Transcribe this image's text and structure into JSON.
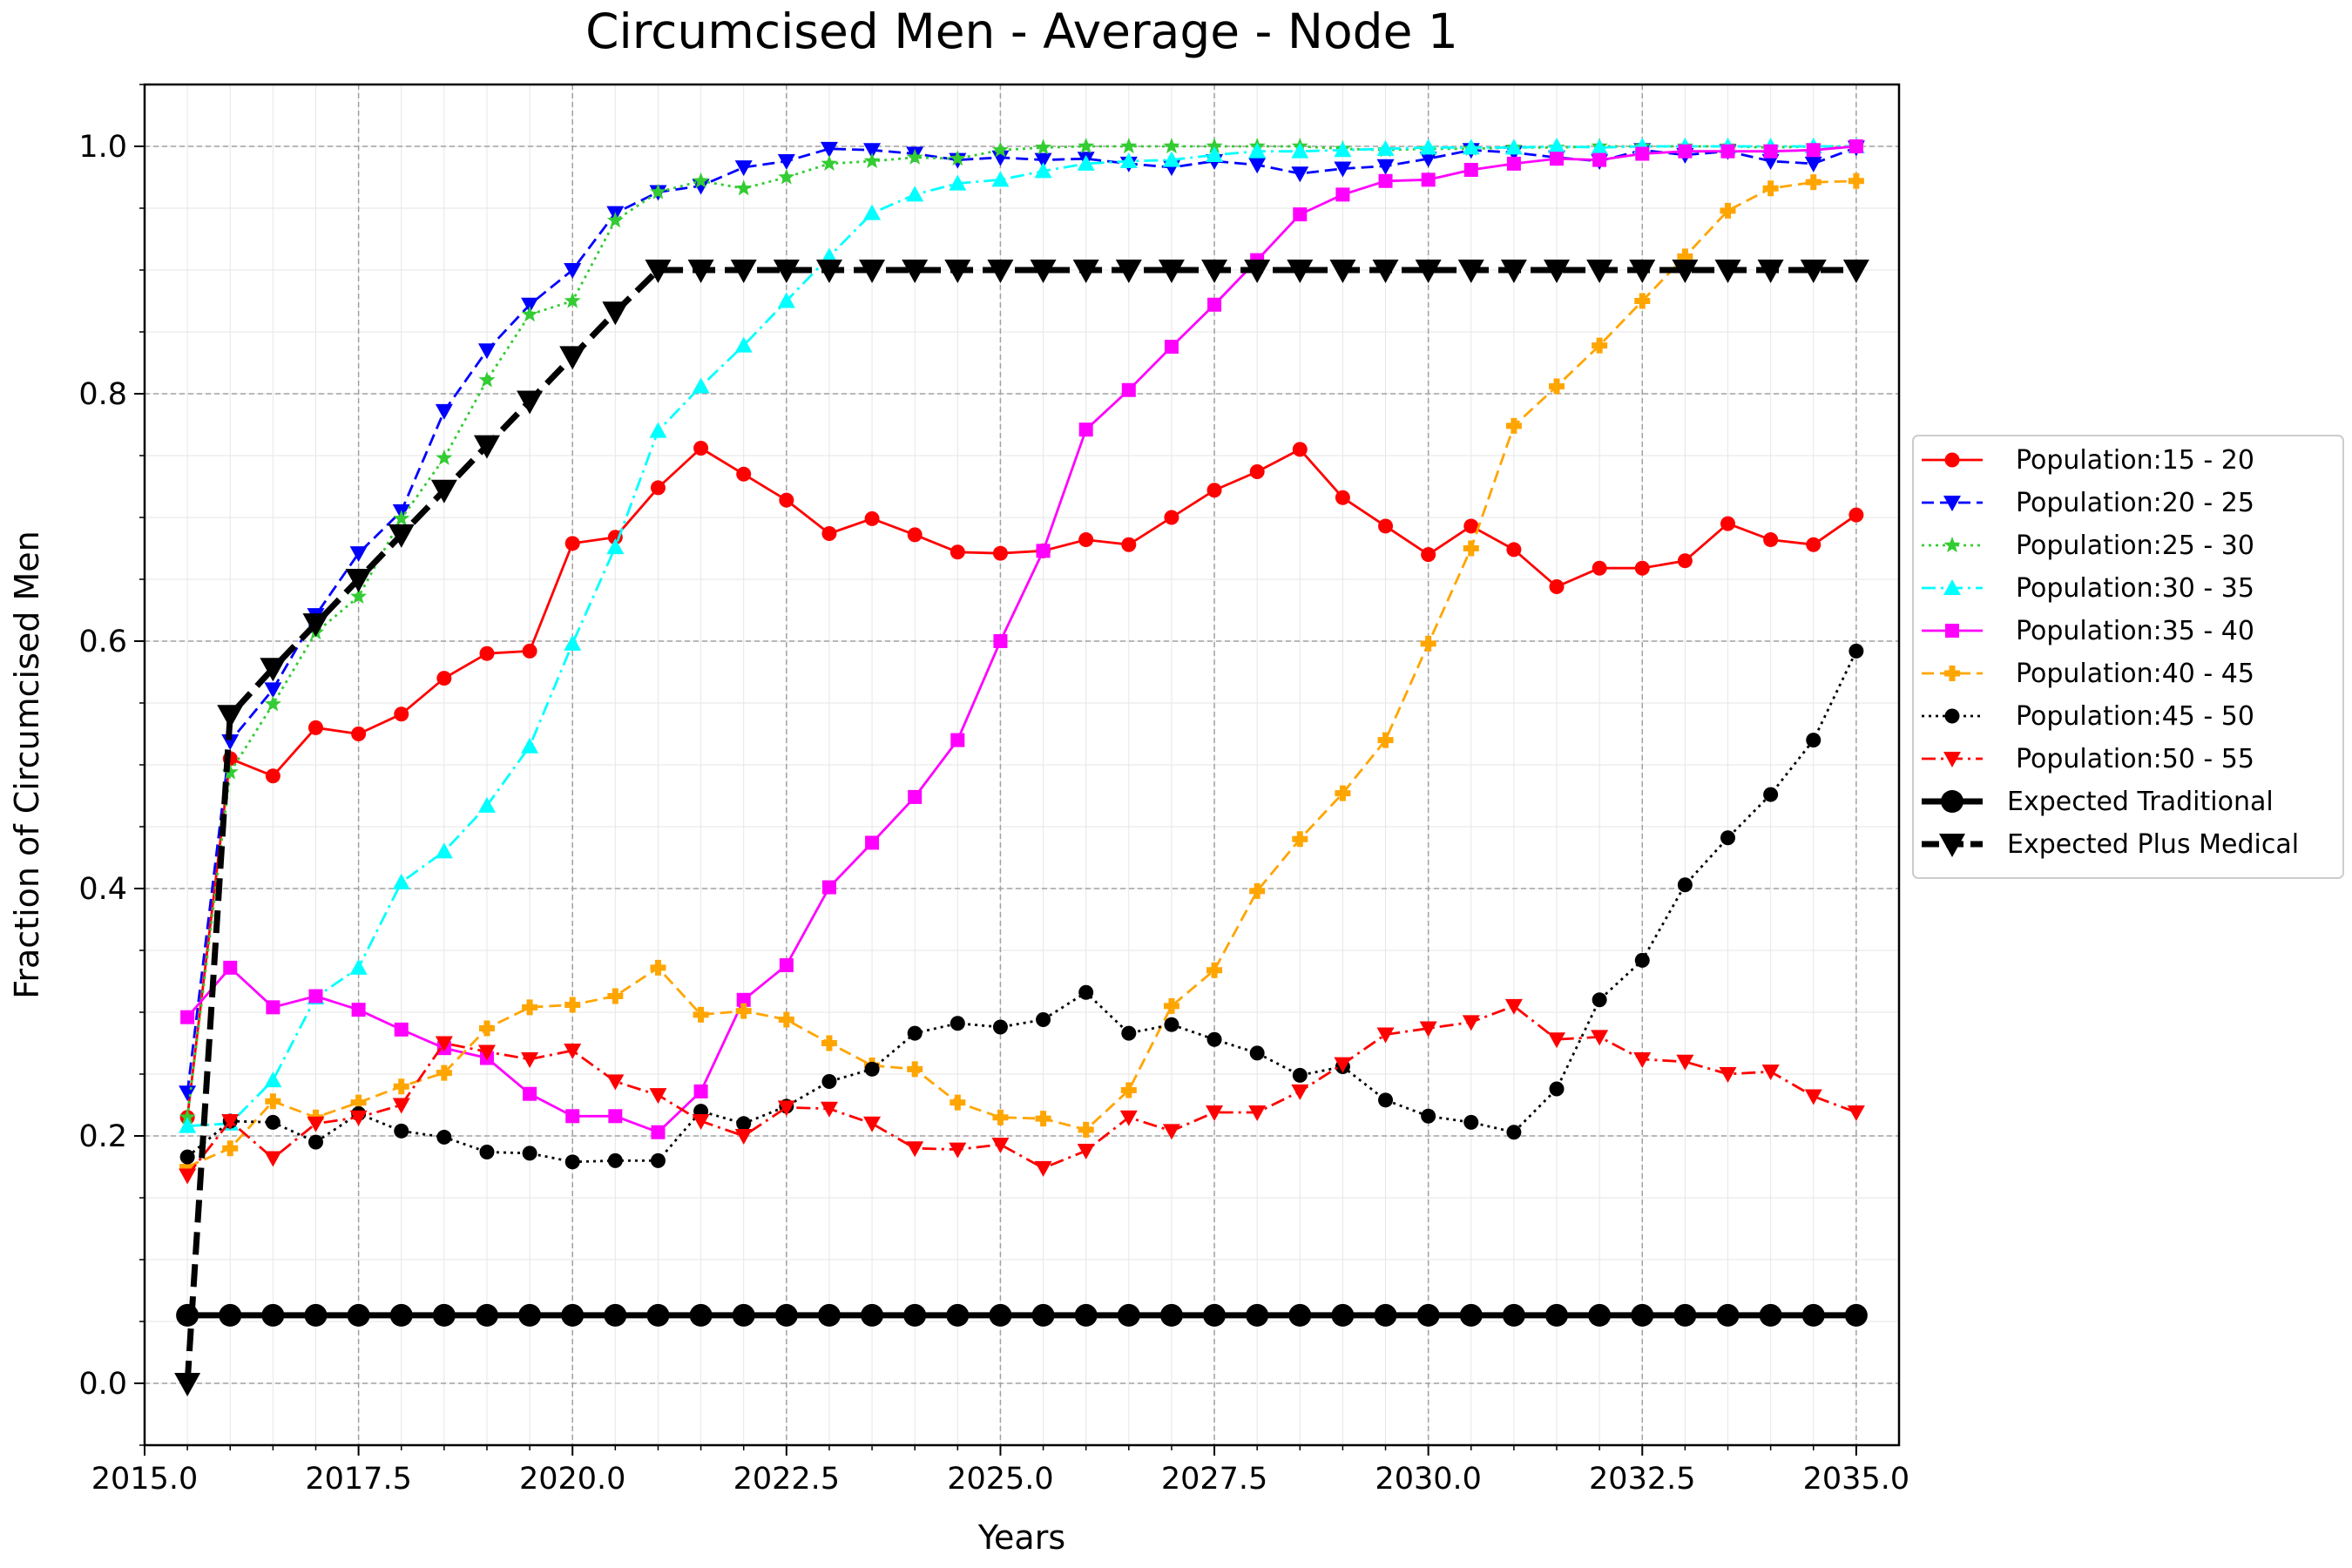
{
  "chart_data": {
    "type": "line",
    "title": "Circumcised Men - Average - Node 1",
    "xlabel": "Years",
    "ylabel": "Fraction of Circumcised Men",
    "xlim": [
      2015.0,
      2035.5
    ],
    "ylim": [
      -0.05,
      1.05
    ],
    "xticks": [
      "2015.0",
      "2017.5",
      "2020.0",
      "2022.5",
      "2025.0",
      "2027.5",
      "2030.0",
      "2032.5",
      "2035.0"
    ],
    "yticks": [
      "0.0",
      "0.2",
      "0.4",
      "0.6",
      "0.8",
      "1.0"
    ],
    "grid": true,
    "legend_position": "right",
    "x": [
      2015.5,
      2016.0,
      2016.5,
      2017.0,
      2017.5,
      2018.0,
      2018.5,
      2019.0,
      2019.5,
      2020.0,
      2020.5,
      2021.0,
      2021.5,
      2022.0,
      2022.5,
      2023.0,
      2023.5,
      2024.0,
      2024.5,
      2025.0,
      2025.5,
      2026.0,
      2026.5,
      2027.0,
      2027.5,
      2028.0,
      2028.5,
      2029.0,
      2029.5,
      2030.0,
      2030.5,
      2031.0,
      2031.5,
      2032.0,
      2032.5,
      2033.0,
      2033.5,
      2034.0,
      2034.5,
      2035.0
    ],
    "series": [
      {
        "name": "Population:15 - 20",
        "color": "#ff0000",
        "dash": "solid",
        "marker": "circle",
        "values": [
          0.215,
          0.505,
          0.491,
          0.53,
          0.525,
          0.541,
          0.57,
          0.59,
          0.592,
          0.679,
          0.684,
          0.724,
          0.756,
          0.735,
          0.714,
          0.687,
          0.699,
          0.686,
          0.672,
          0.671,
          0.673,
          0.682,
          0.678,
          0.7,
          0.722,
          0.737,
          0.755,
          0.716,
          0.693,
          0.67,
          0.693,
          0.674,
          0.644,
          0.659,
          0.659,
          0.665,
          0.695,
          0.682,
          0.678,
          0.702
        ]
      },
      {
        "name": "Population:20 - 25",
        "color": "#0000ff",
        "dash": "dashed",
        "marker": "tri_down",
        "values": [
          0.235,
          0.519,
          0.561,
          0.621,
          0.671,
          0.705,
          0.786,
          0.835,
          0.872,
          0.9,
          0.946,
          0.963,
          0.968,
          0.983,
          0.988,
          0.998,
          0.997,
          0.994,
          0.989,
          0.991,
          0.989,
          0.99,
          0.986,
          0.983,
          0.988,
          0.985,
          0.978,
          0.982,
          0.984,
          0.99,
          0.997,
          0.995,
          0.991,
          0.988,
          0.997,
          0.993,
          0.996,
          0.988,
          0.986,
          0.999
        ]
      },
      {
        "name": "Population:25 - 30",
        "color": "#33cc33",
        "dash": "dotted",
        "marker": "star",
        "values": [
          0.215,
          0.494,
          0.549,
          0.607,
          0.636,
          0.699,
          0.748,
          0.811,
          0.864,
          0.875,
          0.94,
          0.963,
          0.972,
          0.966,
          0.975,
          0.986,
          0.988,
          0.991,
          0.99,
          0.997,
          0.999,
          1.0,
          1.0,
          1.0,
          1.0,
          1.0,
          1.0,
          0.998,
          0.997,
          0.998,
          0.998,
          0.999,
          0.999,
          1.0,
          1.0,
          1.0,
          1.0,
          0.999,
          1.0,
          1.0
        ]
      },
      {
        "name": "Population:30 - 35",
        "color": "#00ffff",
        "dash": "dashdot",
        "marker": "tri_up",
        "values": [
          0.208,
          0.21,
          0.245,
          0.312,
          0.336,
          0.405,
          0.43,
          0.467,
          0.515,
          0.598,
          0.676,
          0.77,
          0.806,
          0.839,
          0.875,
          0.911,
          0.946,
          0.961,
          0.97,
          0.973,
          0.98,
          0.986,
          0.988,
          0.989,
          0.993,
          0.996,
          0.996,
          0.997,
          0.998,
          0.999,
          0.999,
          0.999,
          1.0,
          0.999,
          1.0,
          1.0,
          1.0,
          1.0,
          1.0,
          1.0
        ]
      },
      {
        "name": "Population:35 - 40",
        "color": "#ff00ff",
        "dash": "solid",
        "marker": "square",
        "values": [
          0.296,
          0.336,
          0.304,
          0.313,
          0.302,
          0.286,
          0.271,
          0.263,
          0.234,
          0.216,
          0.216,
          0.203,
          0.236,
          0.31,
          0.338,
          0.401,
          0.437,
          0.474,
          0.52,
          0.6,
          0.673,
          0.771,
          0.803,
          0.838,
          0.872,
          0.908,
          0.945,
          0.961,
          0.972,
          0.973,
          0.981,
          0.986,
          0.99,
          0.989,
          0.994,
          0.996,
          0.996,
          0.996,
          0.997,
          1.0
        ]
      },
      {
        "name": "Population:40 - 45",
        "color": "#ffa500",
        "dash": "dashed",
        "marker": "plus",
        "values": [
          0.175,
          0.19,
          0.228,
          0.215,
          0.227,
          0.24,
          0.251,
          0.287,
          0.304,
          0.306,
          0.313,
          0.336,
          0.298,
          0.301,
          0.294,
          0.275,
          0.257,
          0.254,
          0.227,
          0.215,
          0.214,
          0.205,
          0.237,
          0.305,
          0.334,
          0.398,
          0.44,
          0.477,
          0.52,
          0.598,
          0.675,
          0.774,
          0.806,
          0.839,
          0.875,
          0.911,
          0.948,
          0.966,
          0.971,
          0.972
        ]
      },
      {
        "name": "Population:45 - 50",
        "color": "#000000",
        "dash": "dotted",
        "marker": "circle",
        "values": [
          0.183,
          0.212,
          0.211,
          0.195,
          0.218,
          0.204,
          0.199,
          0.187,
          0.186,
          0.179,
          0.18,
          0.18,
          0.22,
          0.21,
          0.224,
          0.244,
          0.254,
          0.283,
          0.291,
          0.288,
          0.294,
          0.316,
          0.283,
          0.29,
          0.278,
          0.267,
          0.249,
          0.256,
          0.229,
          0.216,
          0.211,
          0.203,
          0.238,
          0.31,
          0.342,
          0.403,
          0.441,
          0.476,
          0.52,
          0.592
        ]
      },
      {
        "name": "Population:50 - 55",
        "color": "#ff0000",
        "dash": "dashdot",
        "marker": "tri_down",
        "values": [
          0.168,
          0.212,
          0.182,
          0.21,
          0.215,
          0.225,
          0.275,
          0.268,
          0.262,
          0.269,
          0.244,
          0.233,
          0.212,
          0.2,
          0.223,
          0.222,
          0.21,
          0.19,
          0.189,
          0.193,
          0.174,
          0.188,
          0.215,
          0.204,
          0.219,
          0.219,
          0.236,
          0.258,
          0.282,
          0.287,
          0.292,
          0.305,
          0.278,
          0.28,
          0.262,
          0.26,
          0.25,
          0.252,
          0.232,
          0.219
        ]
      },
      {
        "name": "Expected Traditional",
        "color": "#000000",
        "dash": "solid",
        "marker": "bigcircle",
        "bold": true,
        "values": [
          0.055,
          0.055,
          0.055,
          0.055,
          0.055,
          0.055,
          0.055,
          0.055,
          0.055,
          0.055,
          0.055,
          0.055,
          0.055,
          0.055,
          0.055,
          0.055,
          0.055,
          0.055,
          0.055,
          0.055,
          0.055,
          0.055,
          0.055,
          0.055,
          0.055,
          0.055,
          0.055,
          0.055,
          0.055,
          0.055,
          0.055,
          0.055,
          0.055,
          0.055,
          0.055,
          0.055,
          0.055,
          0.055,
          0.055,
          0.055
        ]
      },
      {
        "name": "Expected Plus Medical",
        "color": "#000000",
        "dash": "bolddash",
        "marker": "bigtri_down",
        "bold": true,
        "values": [
          0.0,
          0.54,
          0.578,
          0.614,
          0.65,
          0.686,
          0.722,
          0.758,
          0.794,
          0.83,
          0.866,
          0.9,
          0.9,
          0.9,
          0.9,
          0.9,
          0.9,
          0.9,
          0.9,
          0.9,
          0.9,
          0.9,
          0.9,
          0.9,
          0.9,
          0.9,
          0.9,
          0.9,
          0.9,
          0.9,
          0.9,
          0.9,
          0.9,
          0.9,
          0.9,
          0.9,
          0.9,
          0.9,
          0.9,
          0.9
        ]
      }
    ]
  }
}
